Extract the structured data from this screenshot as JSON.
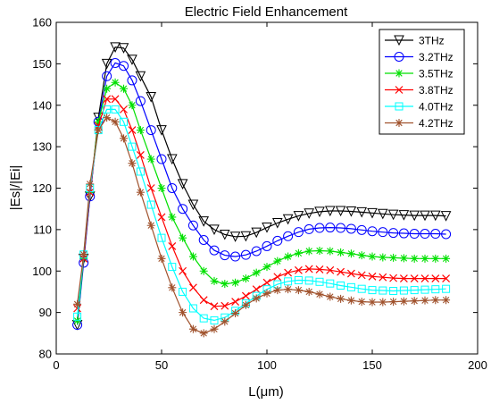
{
  "chart_data": {
    "type": "line",
    "title": "Electric Field Enhancement",
    "xlabel": "L(μm)",
    "ylabel": "|Es|/|Ei|",
    "xlim": [
      0,
      200
    ],
    "ylim": [
      80,
      160
    ],
    "xticks": [
      0,
      50,
      100,
      150,
      200
    ],
    "yticks": [
      80,
      90,
      100,
      110,
      120,
      130,
      140,
      150,
      160
    ],
    "grid": false,
    "legend_position": "top-right",
    "series": [
      {
        "name": "3THz",
        "color": "#000000",
        "marker": "triangle-down",
        "points": [
          [
            10,
            87
          ],
          [
            13,
            103
          ],
          [
            16,
            118
          ],
          [
            20,
            137
          ],
          [
            24,
            150
          ],
          [
            28,
            154
          ],
          [
            32,
            153.8
          ],
          [
            36,
            151
          ],
          [
            40,
            147
          ],
          [
            45,
            142
          ],
          [
            50,
            134
          ],
          [
            55,
            127
          ],
          [
            60,
            121
          ],
          [
            65,
            116
          ],
          [
            70,
            112
          ],
          [
            75,
            110
          ],
          [
            80,
            108.8
          ],
          [
            85,
            108.3
          ],
          [
            90,
            108.4
          ],
          [
            95,
            109.3
          ],
          [
            100,
            110.5
          ],
          [
            105,
            111.6
          ],
          [
            110,
            112.5
          ],
          [
            115,
            113.3
          ],
          [
            120,
            113.9
          ],
          [
            125,
            114.3
          ],
          [
            130,
            114.5
          ],
          [
            135,
            114.5
          ],
          [
            140,
            114.4
          ],
          [
            145,
            114.2
          ],
          [
            150,
            114
          ],
          [
            155,
            113.8
          ],
          [
            160,
            113.6
          ],
          [
            165,
            113.5
          ],
          [
            170,
            113.4
          ],
          [
            175,
            113.4
          ],
          [
            180,
            113.4
          ],
          [
            185,
            113.3
          ]
        ]
      },
      {
        "name": "3.2THz",
        "color": "#0000ff",
        "marker": "circle",
        "points": [
          [
            10,
            87
          ],
          [
            13,
            102
          ],
          [
            16,
            118
          ],
          [
            20,
            136
          ],
          [
            24,
            147
          ],
          [
            28,
            150.2
          ],
          [
            32,
            149.5
          ],
          [
            36,
            146
          ],
          [
            40,
            141
          ],
          [
            45,
            134
          ],
          [
            50,
            127
          ],
          [
            55,
            120
          ],
          [
            60,
            115
          ],
          [
            65,
            111
          ],
          [
            70,
            107.5
          ],
          [
            75,
            105
          ],
          [
            80,
            103.8
          ],
          [
            85,
            103.5
          ],
          [
            90,
            103.9
          ],
          [
            95,
            104.8
          ],
          [
            100,
            106
          ],
          [
            105,
            107.3
          ],
          [
            110,
            108.4
          ],
          [
            115,
            109.4
          ],
          [
            120,
            110.1
          ],
          [
            125,
            110.4
          ],
          [
            130,
            110.5
          ],
          [
            135,
            110.4
          ],
          [
            140,
            110.2
          ],
          [
            145,
            109.9
          ],
          [
            150,
            109.6
          ],
          [
            155,
            109.4
          ],
          [
            160,
            109.2
          ],
          [
            165,
            109.1
          ],
          [
            170,
            109
          ],
          [
            175,
            109
          ],
          [
            180,
            109
          ],
          [
            185,
            108.9
          ]
        ]
      },
      {
        "name": "3.5THz",
        "color": "#00e000",
        "marker": "asterisk",
        "points": [
          [
            10,
            88
          ],
          [
            13,
            103
          ],
          [
            16,
            119
          ],
          [
            20,
            136
          ],
          [
            24,
            144
          ],
          [
            28,
            145.5
          ],
          [
            32,
            144
          ],
          [
            36,
            140
          ],
          [
            40,
            134
          ],
          [
            45,
            127
          ],
          [
            50,
            120
          ],
          [
            55,
            113
          ],
          [
            60,
            108
          ],
          [
            65,
            103.5
          ],
          [
            70,
            100
          ],
          [
            75,
            97.6
          ],
          [
            80,
            96.9
          ],
          [
            85,
            97.2
          ],
          [
            90,
            98.2
          ],
          [
            95,
            99.6
          ],
          [
            100,
            101
          ],
          [
            105,
            102.4
          ],
          [
            110,
            103.5
          ],
          [
            115,
            104.3
          ],
          [
            120,
            104.8
          ],
          [
            125,
            104.9
          ],
          [
            130,
            104.8
          ],
          [
            135,
            104.5
          ],
          [
            140,
            104.2
          ],
          [
            145,
            103.8
          ],
          [
            150,
            103.5
          ],
          [
            155,
            103.3
          ],
          [
            160,
            103.2
          ],
          [
            165,
            103.1
          ],
          [
            170,
            103
          ],
          [
            175,
            103
          ],
          [
            180,
            103
          ],
          [
            185,
            103
          ]
        ]
      },
      {
        "name": "3.8THz",
        "color": "#ff0000",
        "marker": "x",
        "points": [
          [
            10,
            91
          ],
          [
            13,
            103
          ],
          [
            16,
            119
          ],
          [
            20,
            135
          ],
          [
            24,
            141.5
          ],
          [
            28,
            141.5
          ],
          [
            32,
            139
          ],
          [
            36,
            134
          ],
          [
            40,
            128
          ],
          [
            45,
            120
          ],
          [
            50,
            113
          ],
          [
            55,
            106
          ],
          [
            60,
            100
          ],
          [
            65,
            96
          ],
          [
            70,
            93
          ],
          [
            75,
            91.5
          ],
          [
            80,
            91.6
          ],
          [
            85,
            92.6
          ],
          [
            90,
            94
          ],
          [
            95,
            95.6
          ],
          [
            100,
            97.2
          ],
          [
            105,
            98.6
          ],
          [
            110,
            99.6
          ],
          [
            115,
            100.2
          ],
          [
            120,
            100.5
          ],
          [
            125,
            100.4
          ],
          [
            130,
            100.2
          ],
          [
            135,
            99.8
          ],
          [
            140,
            99.4
          ],
          [
            145,
            99
          ],
          [
            150,
            98.7
          ],
          [
            155,
            98.5
          ],
          [
            160,
            98.3
          ],
          [
            165,
            98.2
          ],
          [
            170,
            98.2
          ],
          [
            175,
            98.2
          ],
          [
            180,
            98.2
          ],
          [
            185,
            98.2
          ]
        ]
      },
      {
        "name": "4.0THz",
        "color": "#00ffff",
        "marker": "square",
        "points": [
          [
            10,
            89
          ],
          [
            13,
            104
          ],
          [
            16,
            120
          ],
          [
            20,
            134
          ],
          [
            24,
            139
          ],
          [
            28,
            139
          ],
          [
            32,
            136
          ],
          [
            36,
            130
          ],
          [
            40,
            124
          ],
          [
            45,
            116
          ],
          [
            50,
            108
          ],
          [
            55,
            101
          ],
          [
            60,
            95
          ],
          [
            65,
            91
          ],
          [
            70,
            88.6
          ],
          [
            75,
            88.1
          ],
          [
            80,
            88.8
          ],
          [
            85,
            90.4
          ],
          [
            90,
            92.2
          ],
          [
            95,
            94
          ],
          [
            100,
            95.6
          ],
          [
            105,
            96.8
          ],
          [
            110,
            97.5
          ],
          [
            115,
            97.8
          ],
          [
            120,
            97.7
          ],
          [
            125,
            97.4
          ],
          [
            130,
            97
          ],
          [
            135,
            96.5
          ],
          [
            140,
            96.1
          ],
          [
            145,
            95.7
          ],
          [
            150,
            95.4
          ],
          [
            155,
            95.3
          ],
          [
            160,
            95.2
          ],
          [
            165,
            95.3
          ],
          [
            170,
            95.4
          ],
          [
            175,
            95.5
          ],
          [
            180,
            95.6
          ],
          [
            185,
            95.7
          ]
        ]
      },
      {
        "name": "4.2THz",
        "color": "#a0522d",
        "marker": "asterisk",
        "points": [
          [
            10,
            92
          ],
          [
            13,
            104
          ],
          [
            16,
            121
          ],
          [
            20,
            134
          ],
          [
            24,
            137
          ],
          [
            28,
            136
          ],
          [
            32,
            132
          ],
          [
            36,
            126
          ],
          [
            40,
            119
          ],
          [
            45,
            111
          ],
          [
            50,
            103
          ],
          [
            55,
            96
          ],
          [
            60,
            90
          ],
          [
            65,
            86
          ],
          [
            70,
            85
          ],
          [
            75,
            86
          ],
          [
            80,
            87.8
          ],
          [
            85,
            89.8
          ],
          [
            90,
            91.8
          ],
          [
            95,
            93.4
          ],
          [
            100,
            94.6
          ],
          [
            105,
            95.4
          ],
          [
            110,
            95.6
          ],
          [
            115,
            95.4
          ],
          [
            120,
            95
          ],
          [
            125,
            94.4
          ],
          [
            130,
            93.8
          ],
          [
            135,
            93.3
          ],
          [
            140,
            92.9
          ],
          [
            145,
            92.6
          ],
          [
            150,
            92.5
          ],
          [
            155,
            92.5
          ],
          [
            160,
            92.6
          ],
          [
            165,
            92.7
          ],
          [
            170,
            92.8
          ],
          [
            175,
            92.9
          ],
          [
            180,
            93
          ],
          [
            185,
            93
          ]
        ]
      }
    ]
  }
}
